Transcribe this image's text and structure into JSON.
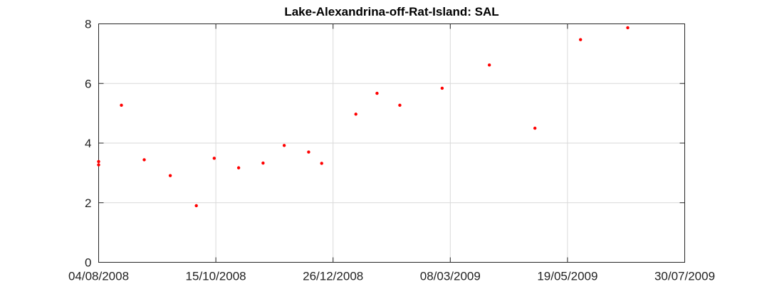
{
  "chart_data": {
    "type": "scatter",
    "title": "Lake-Alexandrina-off-Rat-Island: SAL",
    "xlabel": "",
    "ylabel": "",
    "x_scale": "time",
    "xlim": [
      "2008-08-04",
      "2009-07-30"
    ],
    "ylim": [
      0,
      8
    ],
    "x_ticks": [
      "2008-08-04",
      "2008-10-15",
      "2008-12-26",
      "2009-03-08",
      "2009-05-19",
      "2009-07-30"
    ],
    "x_tick_labels": [
      "04/08/2008",
      "15/10/2008",
      "26/12/2008",
      "08/03/2009",
      "19/05/2009",
      "30/07/2009"
    ],
    "y_ticks": [
      0,
      2,
      4,
      6,
      8
    ],
    "y_tick_labels": [
      "0",
      "2",
      "4",
      "6",
      "8"
    ],
    "grid": true,
    "marker_color": "#ff0000",
    "series": [
      {
        "points": [
          {
            "x": "2008-08-04",
            "y": 3.38
          },
          {
            "x": "2008-08-04",
            "y": 3.27
          },
          {
            "x": "2008-08-18",
            "y": 5.27
          },
          {
            "x": "2008-09-01",
            "y": 3.44
          },
          {
            "x": "2008-09-17",
            "y": 2.91
          },
          {
            "x": "2008-10-03",
            "y": 1.9
          },
          {
            "x": "2008-10-14",
            "y": 3.49
          },
          {
            "x": "2008-10-29",
            "y": 3.17
          },
          {
            "x": "2008-11-13",
            "y": 3.33
          },
          {
            "x": "2008-11-26",
            "y": 3.92
          },
          {
            "x": "2008-12-11",
            "y": 3.7
          },
          {
            "x": "2008-12-19",
            "y": 3.32
          },
          {
            "x": "2009-01-09",
            "y": 4.97
          },
          {
            "x": "2009-01-22",
            "y": 5.67
          },
          {
            "x": "2009-02-05",
            "y": 5.27
          },
          {
            "x": "2009-03-03",
            "y": 5.84
          },
          {
            "x": "2009-04-01",
            "y": 6.62
          },
          {
            "x": "2009-04-29",
            "y": 4.5
          },
          {
            "x": "2009-05-27",
            "y": 7.47
          },
          {
            "x": "2009-06-25",
            "y": 7.87
          }
        ]
      }
    ]
  }
}
